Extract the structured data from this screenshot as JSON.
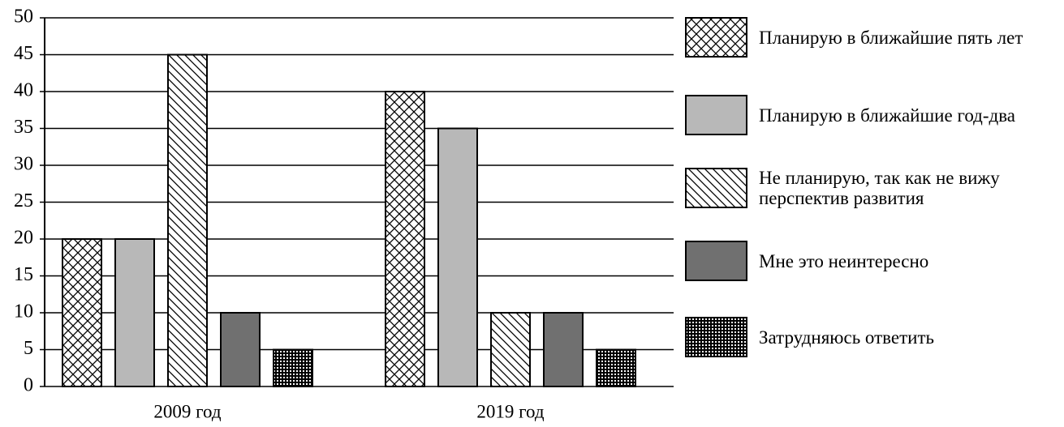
{
  "chart_data": {
    "type": "bar",
    "categories": [
      "2009 год",
      "2019 год"
    ],
    "series": [
      {
        "name": "Планирую в ближайшие пять лет",
        "color": "#ffffff",
        "pattern": "crosshatch",
        "values": [
          20,
          40
        ]
      },
      {
        "name": "Планирую в ближайшие год-два",
        "color": "#b8b8b8",
        "pattern": "none",
        "values": [
          20,
          35
        ]
      },
      {
        "name": "Не планирую, так как не вижу перспектив развития",
        "color": "#ffffff",
        "pattern": "diagonal",
        "values": [
          45,
          10
        ]
      },
      {
        "name": "Мне это неинтересно",
        "color": "#707070",
        "pattern": "none",
        "values": [
          10,
          10
        ]
      },
      {
        "name": "Затрудняюсь ответить",
        "color": "#ffffff",
        "pattern": "grid",
        "values": [
          5,
          5
        ]
      }
    ],
    "ylim": [
      0,
      50
    ],
    "yticks": [
      0,
      5,
      10,
      15,
      20,
      25,
      30,
      35,
      40,
      45,
      50
    ],
    "grid": true,
    "legend": "right"
  }
}
